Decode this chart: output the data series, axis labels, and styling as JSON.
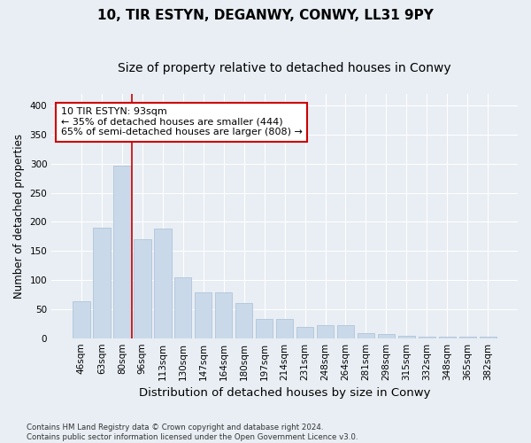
{
  "title1": "10, TIR ESTYN, DEGANWY, CONWY, LL31 9PY",
  "title2": "Size of property relative to detached houses in Conwy",
  "xlabel": "Distribution of detached houses by size in Conwy",
  "ylabel": "Number of detached properties",
  "categories": [
    "46sqm",
    "63sqm",
    "80sqm",
    "96sqm",
    "113sqm",
    "130sqm",
    "147sqm",
    "164sqm",
    "180sqm",
    "197sqm",
    "214sqm",
    "231sqm",
    "248sqm",
    "264sqm",
    "281sqm",
    "298sqm",
    "315sqm",
    "332sqm",
    "348sqm",
    "365sqm",
    "382sqm"
  ],
  "values": [
    63,
    190,
    297,
    170,
    188,
    104,
    78,
    78,
    60,
    33,
    33,
    20,
    22,
    22,
    9,
    7,
    4,
    3,
    3,
    3,
    3
  ],
  "bar_color": "#c9d9ea",
  "bar_edgecolor": "#b0c4d8",
  "vline_x_bar_index": 2,
  "vline_color": "#cc0000",
  "annotation_line1": "10 TIR ESTYN: 93sqm",
  "annotation_line2": "← 35% of detached houses are smaller (444)",
  "annotation_line3": "65% of semi-detached houses are larger (808) →",
  "annotation_box_color": "#ffffff",
  "annotation_box_edgecolor": "#cc0000",
  "background_color": "#e8eef4",
  "plot_background": "#e8eef4",
  "ylim": [
    0,
    420
  ],
  "yticks": [
    0,
    50,
    100,
    150,
    200,
    250,
    300,
    350,
    400
  ],
  "grid_color": "#ffffff",
  "footnote": "Contains HM Land Registry data © Crown copyright and database right 2024.\nContains public sector information licensed under the Open Government Licence v3.0.",
  "title1_fontsize": 11,
  "title2_fontsize": 10,
  "xlabel_fontsize": 9.5,
  "ylabel_fontsize": 8.5,
  "tick_fontsize": 7.5,
  "annotation_fontsize": 8
}
